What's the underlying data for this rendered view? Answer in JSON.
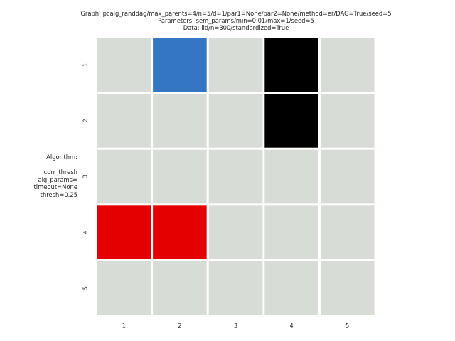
{
  "title_lines": [
    "Graph: pcalg_randdag/max_parents=4/n=5/d=1/par1=None/par2=None/method=er/DAG=True/seed=5",
    "Parameters: sem_params/min=0.01/max=1/seed=5",
    "Data: iid/n=300/standardized=True"
  ],
  "algorithm_label": "Algorithm:\n\ncorr_thresh\nalg_params=\ntimeout=None\nthresh=0.25",
  "chart_data": {
    "type": "heatmap",
    "rows": [
      "1",
      "2",
      "3",
      "4",
      "5"
    ],
    "cols": [
      "1",
      "2",
      "3",
      "4",
      "5"
    ],
    "cells": [
      [
        "empty",
        "blue",
        "empty",
        "black",
        "empty"
      ],
      [
        "empty",
        "empty",
        "empty",
        "black",
        "empty"
      ],
      [
        "empty",
        "empty",
        "empty",
        "empty",
        "empty"
      ],
      [
        "red",
        "red",
        "empty",
        "empty",
        "empty"
      ],
      [
        "empty",
        "empty",
        "empty",
        "empty",
        "empty"
      ]
    ],
    "colors": {
      "empty": "#d7dcd6",
      "blue": "#3576c3",
      "black": "#000000",
      "red": "#e50000"
    },
    "grid_line_color": "#ffffff",
    "legend": "none"
  }
}
